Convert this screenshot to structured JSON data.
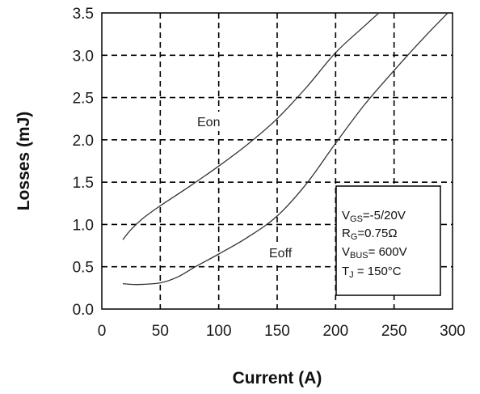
{
  "chart_data": {
    "type": "line",
    "xlabel": "Current (A)",
    "ylabel": "Losses (mJ)",
    "xlim": [
      0,
      300
    ],
    "ylim": [
      0,
      3.5
    ],
    "xticks": [
      "0",
      "50",
      "100",
      "150",
      "200",
      "250",
      "300"
    ],
    "yticks": [
      "0.0",
      "0.5",
      "1.0",
      "1.5",
      "2.0",
      "2.5",
      "3.0",
      "3.5"
    ],
    "grid": true,
    "series": [
      {
        "name": "Eon",
        "x": [
          18,
          25,
          35,
          50,
          75,
          100,
          125,
          150,
          175,
          200,
          225,
          237
        ],
        "y": [
          0.82,
          0.94,
          1.07,
          1.22,
          1.45,
          1.69,
          1.95,
          2.25,
          2.62,
          3.03,
          3.35,
          3.5
        ]
      },
      {
        "name": "Eoff",
        "x": [
          18,
          30,
          50,
          65,
          80,
          100,
          125,
          150,
          175,
          200,
          225,
          250,
          275,
          296
        ],
        "y": [
          0.3,
          0.29,
          0.31,
          0.38,
          0.5,
          0.65,
          0.85,
          1.1,
          1.48,
          1.96,
          2.42,
          2.82,
          3.2,
          3.5
        ]
      }
    ],
    "conditions": {
      "vgs": {
        "main": "V",
        "sub": "GS",
        "rest": "=-5/20V"
      },
      "rg": {
        "main": "R",
        "sub": "G",
        "rest": "=0.75Ω"
      },
      "vbus": {
        "main": "V",
        "sub": "BUS",
        "rest": "= 600V"
      },
      "tj": {
        "main": "T",
        "sub": "J",
        "rest": " = 150°C"
      }
    }
  }
}
